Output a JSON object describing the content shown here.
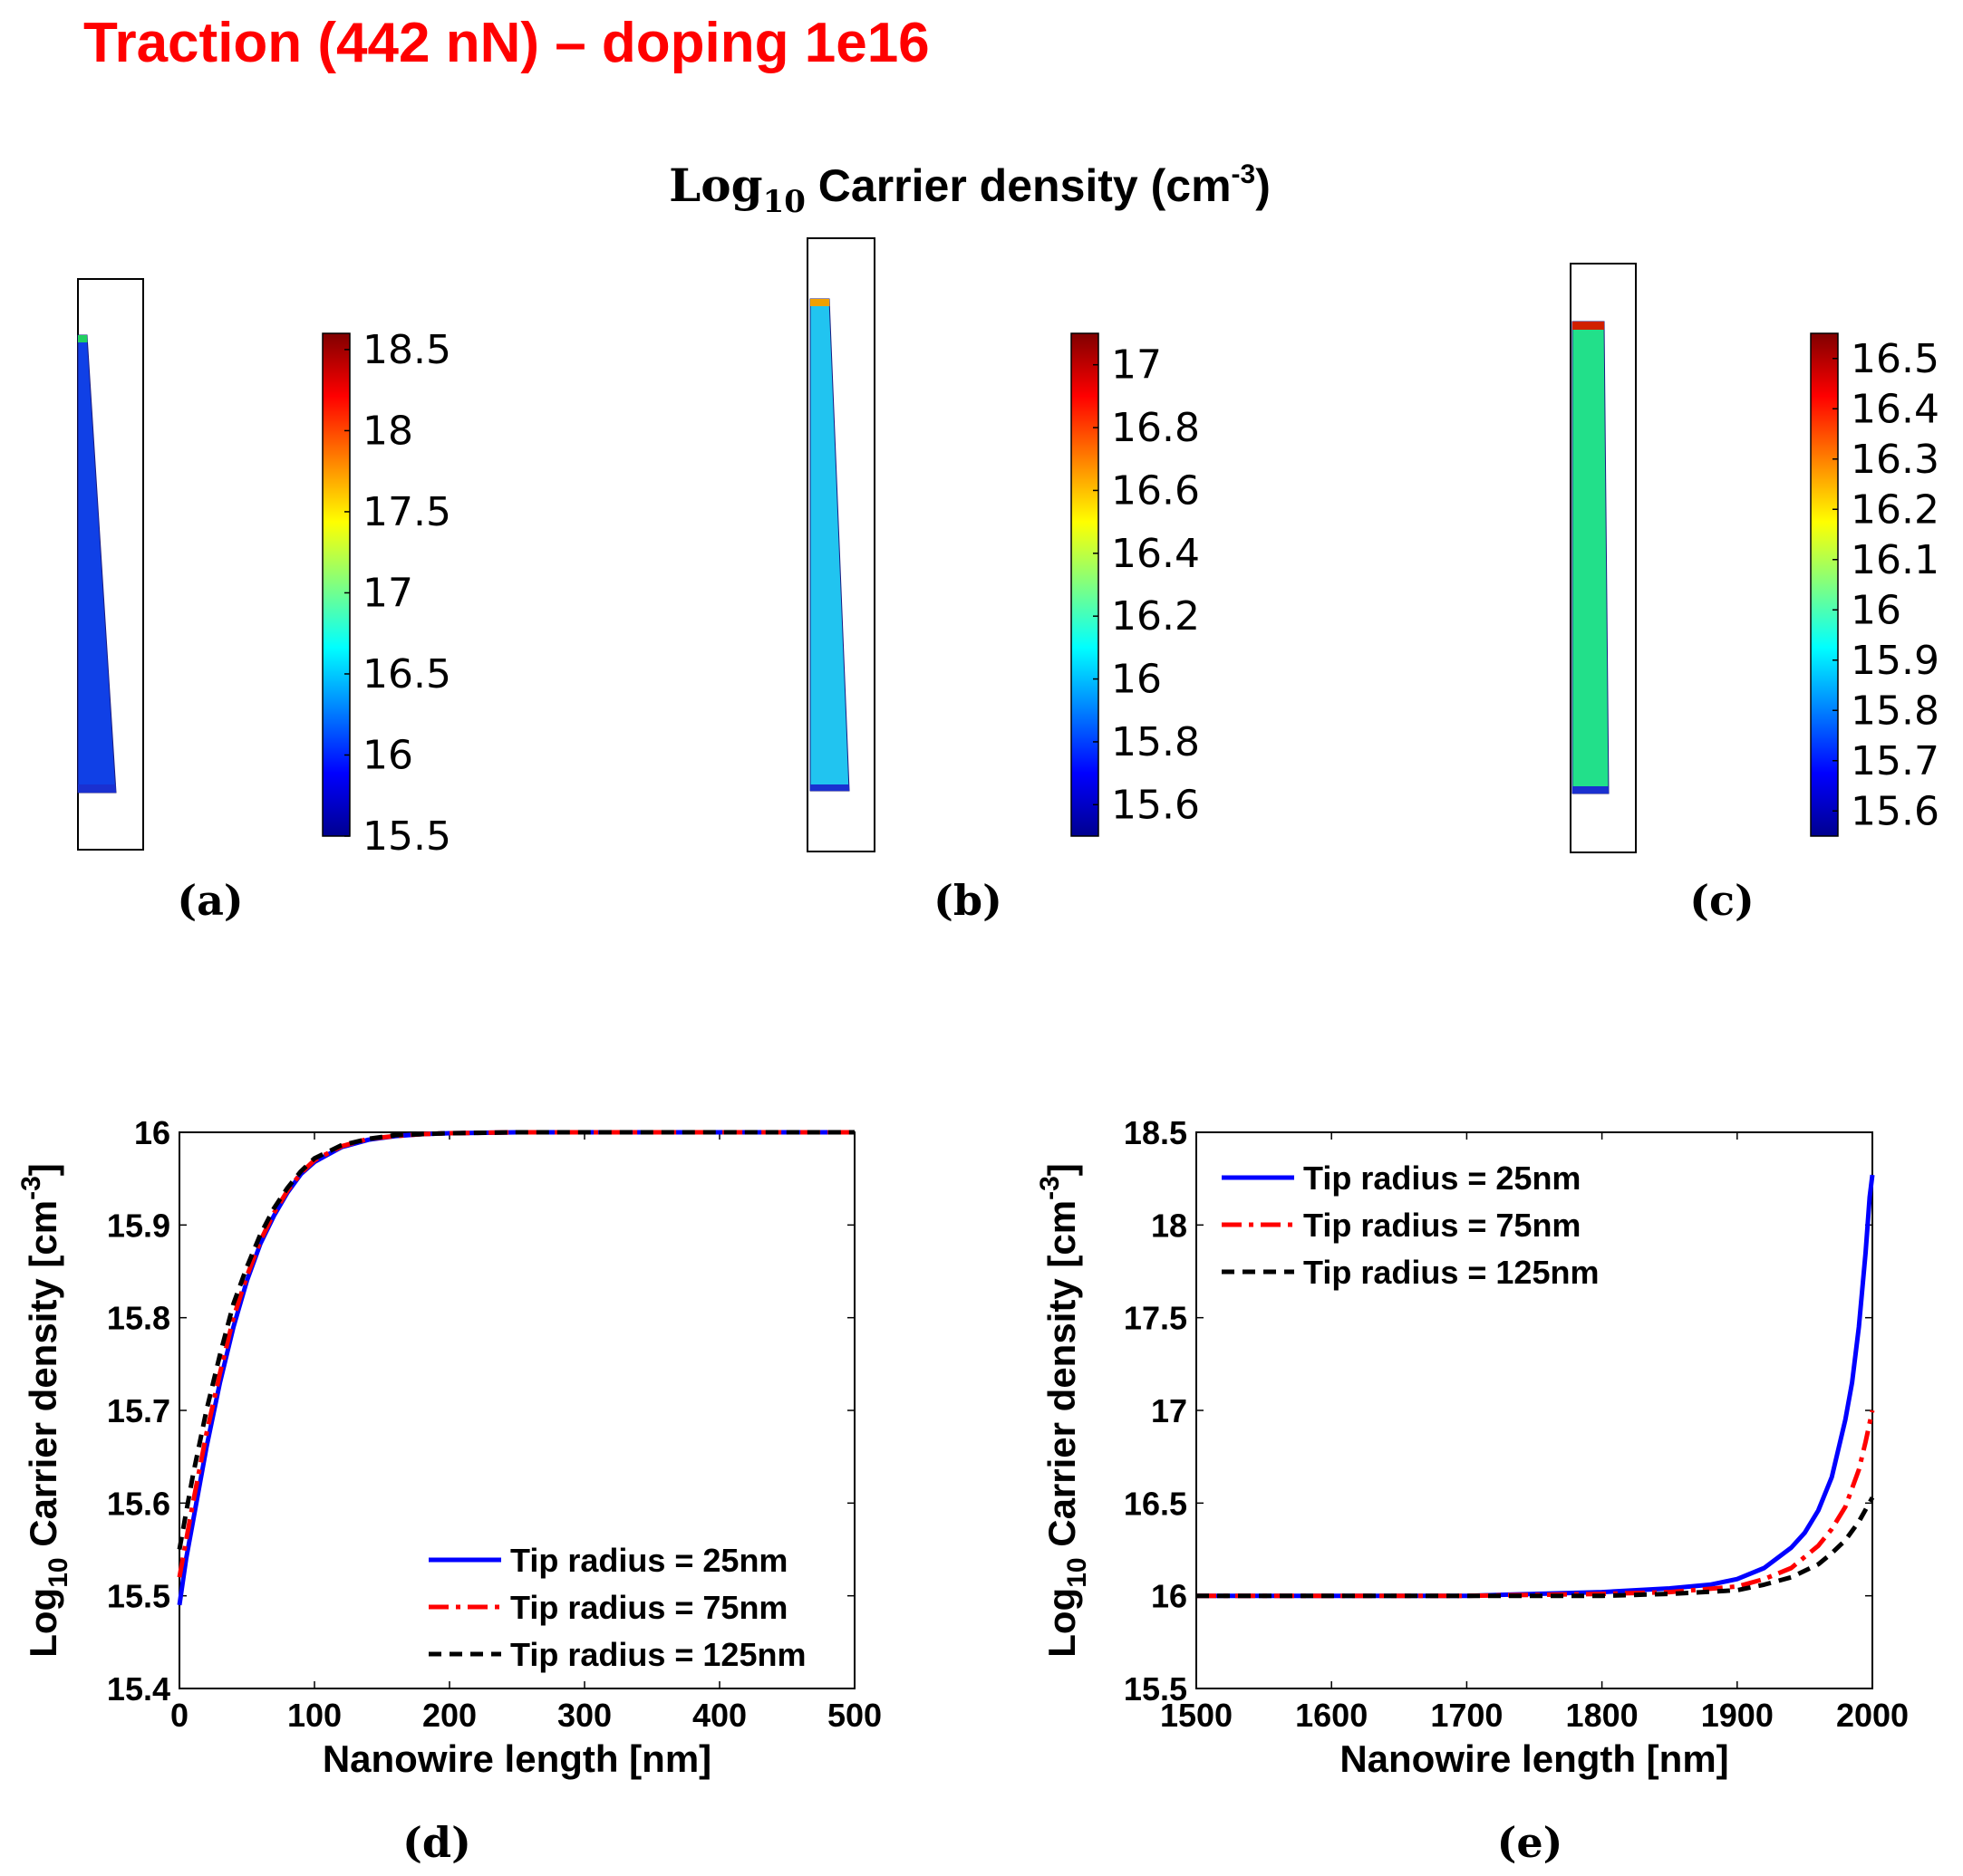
{
  "page": {
    "heading": "Traction  (442 nN) – doping 1e16",
    "heading_color": "#ff0000"
  },
  "maps_title": {
    "prefix": "Log",
    "subscript": "10",
    "rest": " Carrier density (cm",
    "superscript": "-3",
    "suffix": ")"
  },
  "panel_labels": [
    "(a)",
    "(b)",
    "(c)",
    "(d)",
    "(e)"
  ],
  "colormap_stops": [
    "#00008f",
    "#0000ff",
    "#0080ff",
    "#00ffff",
    "#80ff80",
    "#ffff00",
    "#ff8000",
    "#ff0000",
    "#800000"
  ],
  "maps": [
    {
      "label": "(a)",
      "colorbar_min": 15.5,
      "colorbar_max": 18.6,
      "ticks": [
        "15.5",
        "16",
        "16.5",
        "17",
        "17.5",
        "18",
        "18.5"
      ],
      "fill_color": "#1040e6",
      "tip_color": "#20d060"
    },
    {
      "label": "(b)",
      "colorbar_min": 15.5,
      "colorbar_max": 17.1,
      "ticks": [
        "15.6",
        "15.8",
        "16",
        "16.2",
        "16.4",
        "16.6",
        "16.8",
        "17"
      ],
      "fill_color": "#21c4f0",
      "tip_color": "#f0a000"
    },
    {
      "label": "(c)",
      "colorbar_min": 15.55,
      "colorbar_max": 16.55,
      "ticks": [
        "15.6",
        "15.7",
        "15.8",
        "15.9",
        "16",
        "16.1",
        "16.2",
        "16.3",
        "16.4",
        "16.5"
      ],
      "fill_color": "#22e08a",
      "tip_color": "#d02000"
    }
  ],
  "chart_data": [
    {
      "type": "line",
      "panel": "(d)",
      "title": "",
      "xlabel": "Nanowire length [nm]",
      "ylabel_prefix": "Log",
      "ylabel_sub": "10",
      "ylabel_rest": " Carrier density [cm",
      "ylabel_sup": "-3",
      "ylabel_suffix": "]",
      "xlim": [
        0,
        500
      ],
      "ylim": [
        15.4,
        16
      ],
      "xticks": [
        0,
        100,
        200,
        300,
        400,
        500
      ],
      "yticks": [
        15.4,
        15.5,
        15.6,
        15.7,
        15.8,
        15.9,
        16
      ],
      "legend_position": "bottom-right",
      "series": [
        {
          "name": "Tip radius = 25nm",
          "color": "#0000ff",
          "dash": "solid",
          "x": [
            0,
            5,
            10,
            20,
            30,
            40,
            50,
            60,
            70,
            80,
            90,
            100,
            120,
            140,
            160,
            180,
            200,
            250,
            300,
            400,
            500
          ],
          "y": [
            15.49,
            15.54,
            15.58,
            15.66,
            15.73,
            15.79,
            15.84,
            15.88,
            15.91,
            15.935,
            15.955,
            15.968,
            15.984,
            15.992,
            15.996,
            15.998,
            15.999,
            16.0,
            16.0,
            16.0,
            16.0
          ]
        },
        {
          "name": "Tip radius = 75nm",
          "color": "#ff0000",
          "dash": "dashdot",
          "x": [
            0,
            5,
            10,
            20,
            30,
            40,
            50,
            60,
            70,
            80,
            90,
            100,
            120,
            140,
            160,
            180,
            200,
            250,
            300,
            400,
            500
          ],
          "y": [
            15.52,
            15.56,
            15.6,
            15.675,
            15.74,
            15.8,
            15.845,
            15.883,
            15.913,
            15.937,
            15.956,
            15.97,
            15.985,
            15.993,
            15.996,
            15.998,
            15.999,
            16.0,
            16.0,
            16.0,
            16.0
          ]
        },
        {
          "name": "Tip radius = 125nm",
          "color": "#000000",
          "dash": "dashed",
          "x": [
            0,
            5,
            10,
            20,
            30,
            40,
            50,
            60,
            70,
            80,
            90,
            100,
            120,
            140,
            160,
            180,
            200,
            250,
            300,
            400,
            500
          ],
          "y": [
            15.55,
            15.59,
            15.63,
            15.7,
            15.76,
            15.815,
            15.855,
            15.89,
            15.918,
            15.94,
            15.958,
            15.972,
            15.986,
            15.993,
            15.997,
            15.998,
            15.999,
            16.0,
            16.0,
            16.0,
            16.0
          ]
        }
      ]
    },
    {
      "type": "line",
      "panel": "(e)",
      "title": "",
      "xlabel": "Nanowire length [nm]",
      "ylabel_prefix": "Log",
      "ylabel_sub": "10",
      "ylabel_rest": " Carrier density [cm",
      "ylabel_sup": "-3",
      "ylabel_suffix": "]",
      "xlim": [
        1500,
        2000
      ],
      "ylim": [
        15.5,
        18.5
      ],
      "xticks": [
        1500,
        1600,
        1700,
        1800,
        1900,
        2000
      ],
      "yticks": [
        15.5,
        16,
        16.5,
        17,
        17.5,
        18,
        18.5
      ],
      "legend_position": "top-left",
      "series": [
        {
          "name": "Tip radius = 25nm",
          "color": "#0000ff",
          "dash": "solid",
          "x": [
            1500,
            1600,
            1700,
            1750,
            1800,
            1850,
            1880,
            1900,
            1920,
            1940,
            1950,
            1960,
            1970,
            1980,
            1985,
            1990,
            1995,
            1998,
            2000
          ],
          "y": [
            16.0,
            16.0,
            16.0,
            16.01,
            16.02,
            16.04,
            16.06,
            16.09,
            16.15,
            16.26,
            16.34,
            16.46,
            16.64,
            16.95,
            17.15,
            17.45,
            17.85,
            18.15,
            18.27
          ]
        },
        {
          "name": "Tip radius = 75nm",
          "color": "#ff0000",
          "dash": "dashdot",
          "x": [
            1500,
            1600,
            1700,
            1800,
            1850,
            1900,
            1920,
            1940,
            1960,
            1970,
            1980,
            1990,
            1995,
            2000
          ],
          "y": [
            16.0,
            16.0,
            16.0,
            16.01,
            16.02,
            16.05,
            16.09,
            16.15,
            16.27,
            16.36,
            16.48,
            16.68,
            16.83,
            17.0
          ]
        },
        {
          "name": "Tip radius = 125nm",
          "color": "#000000",
          "dash": "dashed",
          "x": [
            1500,
            1600,
            1700,
            1800,
            1850,
            1900,
            1920,
            1940,
            1960,
            1970,
            1980,
            1990,
            2000
          ],
          "y": [
            16.0,
            16.0,
            16.0,
            16.0,
            16.01,
            16.03,
            16.06,
            16.1,
            16.17,
            16.23,
            16.3,
            16.4,
            16.53
          ]
        }
      ]
    }
  ]
}
